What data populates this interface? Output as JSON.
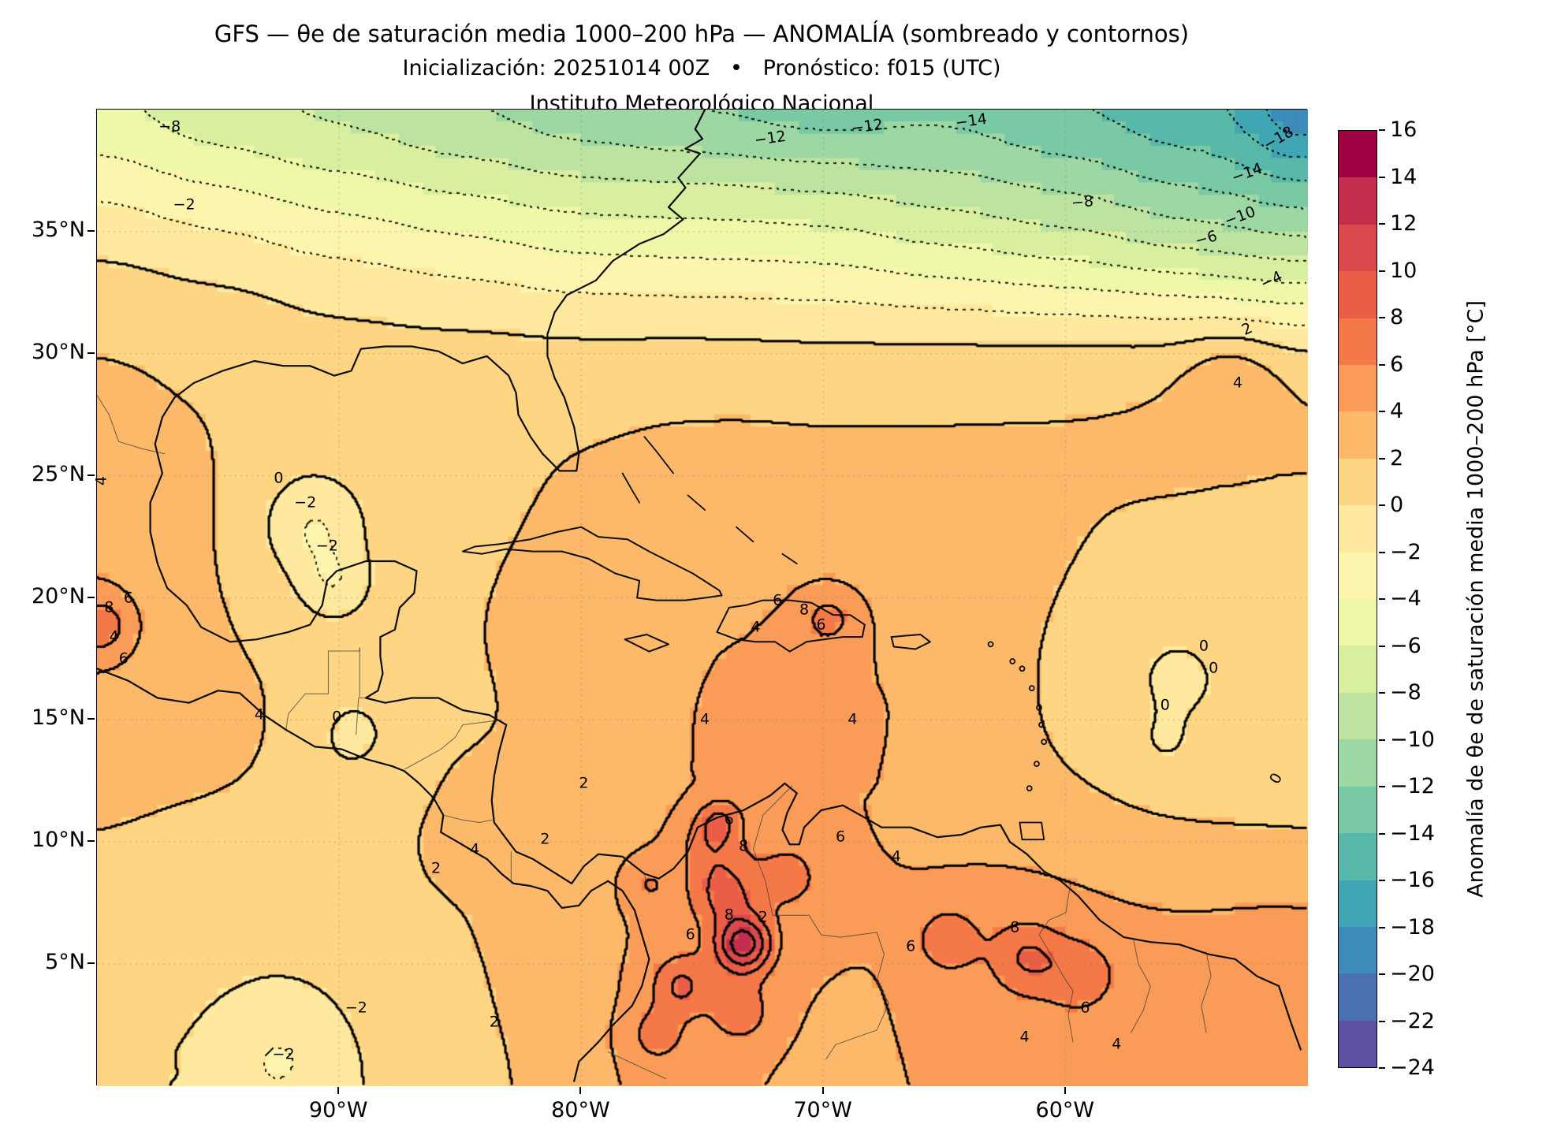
{
  "header": {
    "title": "GFS — θe de saturación media 1000–200 hPa — ANOMALÍA (sombreado y contornos)",
    "subtitle": "Inicialización: 20251014 00Z   •   Pronóstico: f015 (UTC)",
    "institution": "Instituto Meteorológico Nacional"
  },
  "axes": {
    "lon_min": -100,
    "lon_max": -50,
    "lat_min": 0,
    "lat_max": 40,
    "x_ticks": [
      {
        "label": "90°W",
        "lon": -90
      },
      {
        "label": "80°W",
        "lon": -80
      },
      {
        "label": "70°W",
        "lon": -70
      },
      {
        "label": "60°W",
        "lon": -60
      }
    ],
    "y_ticks": [
      {
        "label": "35°N",
        "lat": 35
      },
      {
        "label": "30°N",
        "lat": 30
      },
      {
        "label": "25°N",
        "lat": 25
      },
      {
        "label": "20°N",
        "lat": 20
      },
      {
        "label": "15°N",
        "lat": 15
      },
      {
        "label": "10°N",
        "lat": 10
      },
      {
        "label": "5°N",
        "lat": 5
      }
    ]
  },
  "colorbar": {
    "label": "Anomalía de θe de saturación media 1000–200 hPa [°C]",
    "min": -24,
    "max": 16,
    "step": 2,
    "tick_labels": [
      "16",
      "14",
      "12",
      "10",
      "8",
      "6",
      "4",
      "2",
      "0",
      "−2",
      "−4",
      "−6",
      "−8",
      "−10",
      "−12",
      "−14",
      "−16",
      "−18",
      "−20",
      "−22",
      "−24"
    ],
    "colors_low_to_high": [
      "#5e4fa2",
      "#4a70b1",
      "#3d8bba",
      "#41a6b4",
      "#58b8a9",
      "#79c9a4",
      "#9cd7a4",
      "#bce4a0",
      "#d9efa0",
      "#eef8a8",
      "#fdf5ae",
      "#fee99e",
      "#fed583",
      "#fdb96a",
      "#fa9c58",
      "#f57948",
      "#ea5e47",
      "#d94a4c",
      "#c22e4c",
      "#9e0142"
    ]
  },
  "chart_data": {
    "type": "heatmap",
    "model": "GFS",
    "init": "20251014 00Z",
    "forecast": "f015 (UTC)",
    "field_name": "Anomalía de θe de saturación media 1000–200 hPa",
    "units": "°C",
    "contour_interval": 2,
    "value_range": [
      -24,
      16
    ],
    "x_range": [
      -100,
      -50
    ],
    "y_range": [
      0,
      40
    ],
    "grid": [
      {
        "lat": 40,
        "pts": [
          [
            -100,
            -6
          ],
          [
            -95,
            -8
          ],
          [
            -90,
            -9
          ],
          [
            -85,
            -10.5
          ],
          [
            -80,
            -12
          ],
          [
            -75,
            -13
          ],
          [
            -70,
            -14
          ],
          [
            -65,
            -13
          ],
          [
            -60,
            -14.5
          ],
          [
            -55,
            -16
          ],
          [
            -50,
            -17
          ]
        ]
      },
      {
        "lat": 36,
        "pts": [
          [
            -100,
            -2
          ],
          [
            -95,
            -3.5
          ],
          [
            -90,
            -5
          ],
          [
            -85,
            -6
          ],
          [
            -80,
            -7
          ],
          [
            -75,
            -7
          ],
          [
            -70,
            -7.5
          ],
          [
            -65,
            -9
          ],
          [
            -60,
            -10
          ],
          [
            -55,
            -12
          ],
          [
            -50,
            -13.5
          ]
        ]
      },
      {
        "lat": 33,
        "pts": [
          [
            -100,
            1
          ],
          [
            -95,
            0.5
          ],
          [
            -90,
            -0.5
          ],
          [
            -85,
            -1.5
          ],
          [
            -80,
            -2.5
          ],
          [
            -75,
            -3
          ],
          [
            -70,
            -3
          ],
          [
            -65,
            -4
          ],
          [
            -60,
            -5
          ],
          [
            -55,
            -6
          ],
          [
            -50,
            -7
          ]
        ]
      },
      {
        "lat": 30,
        "pts": [
          [
            -100,
            2.2
          ],
          [
            -95,
            1.6
          ],
          [
            -90,
            1
          ],
          [
            -85,
            1.2
          ],
          [
            -80,
            1.2
          ],
          [
            -75,
            1.5
          ],
          [
            -70,
            1.2
          ],
          [
            -65,
            1.6
          ],
          [
            -60,
            2
          ],
          [
            -55,
            2.4
          ],
          [
            -50,
            2.2
          ]
        ]
      },
      {
        "lat": 27,
        "pts": [
          [
            -100,
            2.6
          ],
          [
            -95,
            2
          ],
          [
            -90,
            1.2
          ],
          [
            -85,
            1.6
          ],
          [
            -80,
            2
          ],
          [
            -75,
            2.2
          ],
          [
            -70,
            2.2
          ],
          [
            -65,
            2.2
          ],
          [
            -60,
            2.2
          ],
          [
            -55,
            2.4
          ],
          [
            -50,
            2.4
          ]
        ]
      },
      {
        "lat": 24,
        "pts": [
          [
            -100,
            3.6
          ],
          [
            -96,
            3
          ],
          [
            -92,
            -0.8
          ],
          [
            -88,
            0.6
          ],
          [
            -84,
            1.6
          ],
          [
            -80,
            2.2
          ],
          [
            -76,
            2.5
          ],
          [
            -72,
            2.5
          ],
          [
            -68,
            2.3
          ],
          [
            -64,
            2.2
          ],
          [
            -60,
            2
          ],
          [
            -55,
            2
          ],
          [
            -50,
            1.8
          ]
        ]
      },
      {
        "lat": 21,
        "pts": [
          [
            -100,
            3.6
          ],
          [
            -97,
            3
          ],
          [
            -93,
            0.2
          ],
          [
            -90,
            0.6
          ],
          [
            -87,
            1
          ],
          [
            -84,
            2
          ],
          [
            -80,
            2.6
          ],
          [
            -77,
            3
          ],
          [
            -73,
            3.4
          ],
          [
            -70,
            3.4
          ],
          [
            -66,
            3
          ],
          [
            -62,
            2.6
          ],
          [
            -58,
            2
          ],
          [
            -54,
            1.6
          ],
          [
            -50,
            1.5
          ]
        ]
      },
      {
        "lat": 18.5,
        "pts": [
          [
            -100,
            5.5
          ],
          [
            -97,
            3.2
          ],
          [
            -94,
            2
          ],
          [
            -91,
            1
          ],
          [
            -88,
            1.4
          ],
          [
            -85,
            2
          ],
          [
            -82,
            2.6
          ],
          [
            -79,
            3
          ],
          [
            -76,
            3.6
          ],
          [
            -73,
            4.2
          ],
          [
            -70.5,
            5
          ],
          [
            -68,
            4.2
          ],
          [
            -65,
            3.2
          ],
          [
            -62,
            2.2
          ],
          [
            -59,
            1.2
          ],
          [
            -56,
            0.7
          ],
          [
            -53,
            0.5
          ],
          [
            -50,
            0.8
          ]
        ]
      },
      {
        "lat": 15,
        "pts": [
          [
            -100,
            3
          ],
          [
            -97,
            2.6
          ],
          [
            -94,
            3.4
          ],
          [
            -91,
            0.8
          ],
          [
            -88,
            0.6
          ],
          [
            -85,
            1.2
          ],
          [
            -82,
            2.4
          ],
          [
            -79,
            3
          ],
          [
            -76,
            3.8
          ],
          [
            -73,
            4.4
          ],
          [
            -70,
            4.4
          ],
          [
            -67,
            4
          ],
          [
            -64,
            3
          ],
          [
            -61,
            1.8
          ],
          [
            -58,
            1
          ],
          [
            -55,
            0.6
          ],
          [
            -52,
            0.4
          ],
          [
            -50,
            0.6
          ]
        ]
      },
      {
        "lat": 11.5,
        "pts": [
          [
            -100,
            2.2
          ],
          [
            -96,
            1.8
          ],
          [
            -92,
            1.2
          ],
          [
            -88,
            1.4
          ],
          [
            -85,
            2.6
          ],
          [
            -82,
            2.2
          ],
          [
            -79,
            2.4
          ],
          [
            -76,
            3.4
          ],
          [
            -73.5,
            4.8
          ],
          [
            -71,
            4.4
          ],
          [
            -68,
            3.8
          ],
          [
            -65,
            3.2
          ],
          [
            -62,
            2.6
          ],
          [
            -59,
            2
          ],
          [
            -56,
            1.4
          ],
          [
            -53,
            1
          ],
          [
            -50,
            1.2
          ]
        ]
      },
      {
        "lat": 8,
        "pts": [
          [
            -100,
            1.6
          ],
          [
            -96,
            1.3
          ],
          [
            -92,
            1.1
          ],
          [
            -88,
            1.6
          ],
          [
            -85,
            2
          ],
          [
            -82,
            2.6
          ],
          [
            -79,
            3
          ],
          [
            -76.5,
            4.6
          ],
          [
            -74,
            6.5
          ],
          [
            -71.5,
            5
          ],
          [
            -69,
            4.2
          ],
          [
            -66,
            4
          ],
          [
            -63,
            5
          ],
          [
            -60,
            4.6
          ],
          [
            -57,
            4
          ],
          [
            -54,
            4.2
          ],
          [
            -51,
            4.6
          ]
        ]
      },
      {
        "lat": 4,
        "pts": [
          [
            -100,
            0.8
          ],
          [
            -96,
            0.5
          ],
          [
            -92,
            0.1
          ],
          [
            -88,
            0.9
          ],
          [
            -85,
            1.6
          ],
          [
            -82,
            2.6
          ],
          [
            -79,
            3.6
          ],
          [
            -76,
            5.5
          ],
          [
            -73,
            5
          ],
          [
            -70,
            3.4
          ],
          [
            -67,
            4
          ],
          [
            -64,
            5
          ],
          [
            -61,
            5.5
          ],
          [
            -58,
            4.8
          ],
          [
            -55,
            4.6
          ],
          [
            -52,
            4.4
          ]
        ]
      },
      {
        "lat": 0.5,
        "pts": [
          [
            -100,
            0.2
          ],
          [
            -96,
            -0.2
          ],
          [
            -92,
            -0.8
          ],
          [
            -88,
            0.4
          ],
          [
            -84,
            1.4
          ],
          [
            -80,
            3
          ],
          [
            -77,
            5
          ],
          [
            -74,
            4
          ],
          [
            -70,
            3.4
          ],
          [
            -66,
            4
          ],
          [
            -62,
            4.6
          ],
          [
            -58,
            4.6
          ],
          [
            -54,
            4.6
          ],
          [
            -50,
            4.2
          ]
        ]
      }
    ],
    "hotspots": [
      [
        -73.3,
        5.8,
        8,
        0.8
      ],
      [
        -74.1,
        7.9,
        3.5,
        0.9
      ],
      [
        -74.7,
        9.9,
        2.6,
        0.9
      ],
      [
        -74.3,
        10.9,
        3,
        0.6
      ],
      [
        -75.9,
        4.1,
        3.5,
        0.8
      ],
      [
        -76.9,
        2.1,
        2.5,
        0.8
      ],
      [
        -73.4,
        3,
        2.5,
        0.9
      ],
      [
        -99.85,
        18.85,
        3.5,
        0.8
      ],
      [
        -69.8,
        19.15,
        2.6,
        0.8
      ],
      [
        -64.9,
        6,
        3.2,
        0.9
      ],
      [
        -61.6,
        5.3,
        3.2,
        1
      ],
      [
        -59.4,
        4.6,
        2.6,
        1
      ],
      [
        -71.4,
        8.6,
        2,
        0.9
      ],
      [
        -77.3,
        8.3,
        2,
        0.8
      ],
      [
        -53.2,
        28.8,
        2.2,
        1.3
      ],
      [
        -50.3,
        40,
        -3,
        1.5
      ],
      [
        -91,
        22.8,
        -2.4,
        1.2
      ],
      [
        -90.2,
        20.6,
        -2.5,
        1
      ],
      [
        -89.5,
        14.3,
        -1.4,
        1.4
      ],
      [
        -92.5,
        1.2,
        -1.8,
        1.8
      ],
      [
        -55.5,
        16.8,
        -1.3,
        1.2
      ],
      [
        -56,
        14,
        -1.1,
        1
      ],
      [
        -71.5,
        14.5,
        1,
        2
      ],
      [
        -84.8,
        9.8,
        1.5,
        0.9
      ],
      [
        -83.9,
        11.9,
        0.8,
        1.2
      ]
    ],
    "contour_labels": [
      [
        "−8",
        -97.0,
        39.3,
        0
      ],
      [
        "−12",
        -72.2,
        38.8,
        -8
      ],
      [
        "−12",
        -68.2,
        39.3,
        -8
      ],
      [
        "−14",
        -63.9,
        39.5,
        -8
      ],
      [
        "−18",
        -51.2,
        38.8,
        -30
      ],
      [
        "−14",
        -52.5,
        37.4,
        -20
      ],
      [
        "−8",
        -59.3,
        36.2,
        -5
      ],
      [
        "−10",
        -52.8,
        35.6,
        -20
      ],
      [
        "−6",
        -54.2,
        34.7,
        -15
      ],
      [
        "−4",
        -51.5,
        33.0,
        -25
      ],
      [
        "−2",
        -96.4,
        36.1,
        0
      ],
      [
        "2",
        -52.5,
        31.0,
        -25
      ],
      [
        "4",
        -52.9,
        28.8,
        0
      ],
      [
        "0",
        -92.5,
        24.9,
        0
      ],
      [
        "−2",
        -91.4,
        23.9,
        0
      ],
      [
        "−2",
        -90.5,
        22.1,
        0
      ],
      [
        "4",
        -99.8,
        24.8,
        -90
      ],
      [
        "8",
        -99.5,
        19.6,
        0
      ],
      [
        "6",
        -98.7,
        20.0,
        0
      ],
      [
        "4",
        -99.3,
        18.4,
        0
      ],
      [
        "6",
        -98.9,
        17.5,
        0
      ],
      [
        "4",
        -93.3,
        15.2,
        0
      ],
      [
        "0",
        -90.1,
        15.1,
        0
      ],
      [
        "6",
        -71.9,
        19.9,
        0
      ],
      [
        "8",
        -70.8,
        19.5,
        0
      ],
      [
        "6",
        -70.1,
        18.9,
        0
      ],
      [
        "4",
        -72.8,
        18.8,
        0
      ],
      [
        "4",
        -74.9,
        15.0,
        0
      ],
      [
        "4",
        -68.8,
        15.0,
        0
      ],
      [
        "2",
        -79.9,
        12.4,
        0
      ],
      [
        "6",
        -73.9,
        10.9,
        0
      ],
      [
        "8",
        -73.3,
        9.8,
        0
      ],
      [
        "6",
        -69.3,
        10.2,
        0
      ],
      [
        "4",
        -67.0,
        9.4,
        0
      ],
      [
        "4",
        -84.4,
        9.7,
        0
      ],
      [
        "2",
        -81.5,
        10.1,
        0
      ],
      [
        "2",
        -86.0,
        8.9,
        0
      ],
      [
        "2",
        -72.5,
        6.9,
        0
      ],
      [
        "8",
        -73.9,
        7.0,
        0
      ],
      [
        "6",
        -75.5,
        6.2,
        0
      ],
      [
        "8",
        -62.1,
        6.5,
        0
      ],
      [
        "6",
        -66.4,
        5.7,
        0
      ],
      [
        "6",
        -59.2,
        3.2,
        0
      ],
      [
        "4",
        -61.7,
        2.0,
        0
      ],
      [
        "0",
        -54.3,
        18.0,
        0
      ],
      [
        "0",
        -53.9,
        17.1,
        0
      ],
      [
        "0",
        -55.9,
        15.6,
        0
      ],
      [
        "0",
        -51.3,
        12.6,
        -60
      ],
      [
        "−2",
        -89.3,
        3.2,
        0
      ],
      [
        "−2",
        -92.3,
        1.3,
        0
      ],
      [
        "2",
        -83.6,
        2.6,
        0
      ],
      [
        "4",
        -57.9,
        1.7,
        0
      ]
    ]
  }
}
